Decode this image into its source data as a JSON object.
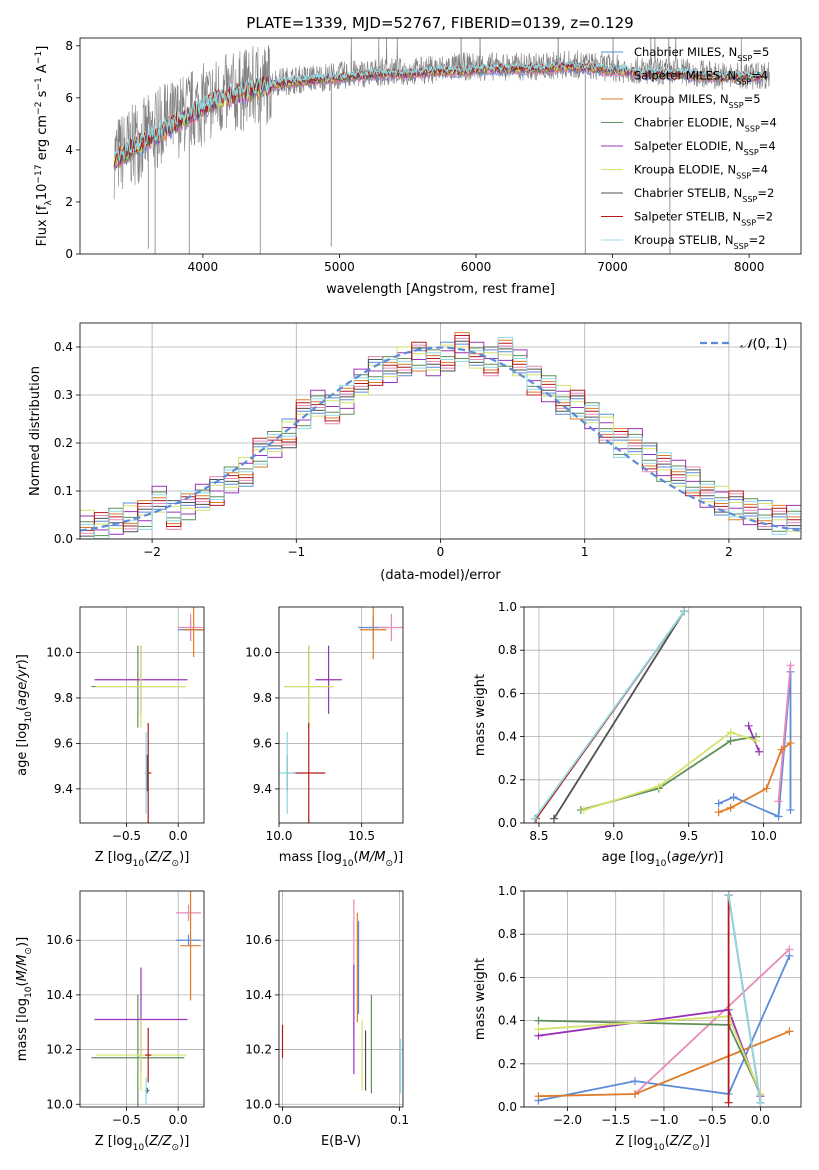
{
  "figure": {
    "title": "PLATE=1339, MJD=52767, FIBERID=0139, z=0.129"
  },
  "models": [
    {
      "name": "Chabrier MILES",
      "nssp": "5",
      "color": "#5b8bd9"
    },
    {
      "name": "Salpeter MILES",
      "nssp": "4",
      "color": "#e88aba"
    },
    {
      "name": "Kroupa MILES",
      "nssp": "5",
      "color": "#de7b28"
    },
    {
      "name": "Chabrier ELODIE",
      "nssp": "4",
      "color": "#5f8f5b"
    },
    {
      "name": "Salpeter ELODIE",
      "nssp": "4",
      "color": "#9a33b8"
    },
    {
      "name": "Kroupa ELODIE",
      "nssp": "4",
      "color": "#d6e26a"
    },
    {
      "name": "Chabrier STELIB",
      "nssp": "2",
      "color": "#505050"
    },
    {
      "name": "Salpeter STELIB",
      "nssp": "2",
      "color": "#b31b1b"
    },
    {
      "name": "Kroupa STELIB",
      "nssp": "2",
      "color": "#8fd9e3"
    }
  ],
  "chart_data": [
    {
      "id": "spectrum",
      "type": "line",
      "title": "PLATE=1339, MJD=52767, FIBERID=0139, z=0.129",
      "xlabel": "wavelength [Angstrom, rest frame]",
      "ylabel": "Flux [f_λ 10^-17 erg cm^-2 s^-1 A^-1]",
      "xlim": [
        3100,
        8380
      ],
      "ylim": [
        0,
        8.3
      ],
      "xticks": [
        4000,
        5000,
        6000,
        7000,
        8000
      ],
      "yticks": [
        0,
        2,
        4,
        6,
        8
      ],
      "data_x": [
        3350,
        3500,
        3700,
        3900,
        4100,
        4300,
        4500,
        4700,
        4900,
        5100,
        5300,
        5500,
        5700,
        5900,
        6100,
        6300,
        6500,
        6700,
        6900,
        7100,
        7300,
        7500,
        7700,
        7900,
        8150
      ],
      "data_y": [
        3.7,
        4.2,
        4.9,
        5.5,
        6.0,
        6.3,
        6.6,
        6.7,
        6.8,
        6.9,
        7.0,
        7.0,
        7.1,
        7.2,
        7.2,
        7.2,
        7.2,
        7.3,
        7.2,
        7.1,
        7.0,
        7.0,
        6.9,
        6.8,
        6.9
      ],
      "model_x": [
        3350,
        3500,
        3700,
        3900,
        4100,
        4300,
        4500,
        4700,
        4900,
        5100,
        5300,
        5500,
        5700,
        5900,
        6100,
        6300,
        6500,
        6700,
        6900,
        7100,
        7300,
        7500,
        7700,
        7900,
        8100
      ],
      "model_y": [
        3.6,
        4.1,
        4.7,
        5.3,
        5.9,
        6.2,
        6.5,
        6.6,
        6.7,
        6.8,
        6.9,
        6.9,
        7.0,
        7.0,
        7.1,
        7.1,
        7.1,
        7.2,
        7.1,
        7.0,
        6.9,
        6.9,
        6.8,
        6.8,
        6.8
      ],
      "legend_position": "upper right"
    },
    {
      "id": "residual-hist",
      "type": "line",
      "xlabel": "(data-model)/error",
      "ylabel": "Normed distribution",
      "xlim": [
        -2.5,
        2.5
      ],
      "ylim": [
        0,
        0.45
      ],
      "xticks": [
        -2,
        -1,
        0,
        1,
        2
      ],
      "yticks": [
        0.0,
        0.1,
        0.2,
        0.3,
        0.4
      ],
      "legend": "N(0,1)",
      "legend_position": "upper right",
      "bin_edges": [
        -2.5,
        -2.4,
        -2.3,
        -2.2,
        -2.1,
        -2.0,
        -1.9,
        -1.8,
        -1.7,
        -1.6,
        -1.5,
        -1.4,
        -1.3,
        -1.2,
        -1.1,
        -1.0,
        -0.9,
        -0.8,
        -0.7,
        -0.6,
        -0.5,
        -0.4,
        -0.3,
        -0.2,
        -0.1,
        0.0,
        0.1,
        0.2,
        0.3,
        0.4,
        0.5,
        0.6,
        0.7,
        0.8,
        0.9,
        1.0,
        1.1,
        1.2,
        1.3,
        1.4,
        1.5,
        1.6,
        1.7,
        1.8,
        1.9,
        2.0,
        2.1,
        2.2,
        2.3,
        2.4,
        2.5
      ],
      "hist_values": [
        0.03,
        0.025,
        0.04,
        0.045,
        0.05,
        0.08,
        0.05,
        0.07,
        0.09,
        0.1,
        0.12,
        0.14,
        0.18,
        0.2,
        0.22,
        0.26,
        0.28,
        0.27,
        0.29,
        0.33,
        0.35,
        0.35,
        0.37,
        0.38,
        0.37,
        0.38,
        0.4,
        0.38,
        0.37,
        0.39,
        0.37,
        0.33,
        0.31,
        0.29,
        0.28,
        0.26,
        0.23,
        0.2,
        0.2,
        0.17,
        0.15,
        0.14,
        0.12,
        0.09,
        0.08,
        0.07,
        0.06,
        0.05,
        0.04,
        0.04
      ],
      "gaussian_mean": 0,
      "gaussian_sigma": 1
    },
    {
      "id": "age-vs-Z",
      "type": "scatter",
      "xlabel": "Z [log10(Z/Z☉)]",
      "ylabel": "age  [log10(age/yr)]",
      "xlim": [
        -0.95,
        0.25
      ],
      "ylim": [
        9.25,
        10.2
      ],
      "xticks": [
        -0.5,
        0.0
      ],
      "yticks": [
        9.4,
        9.6,
        9.8,
        10.0
      ],
      "points": [
        {
          "model": 0,
          "x": 0.12,
          "y": 10.1,
          "xerr": 0.12,
          "yerr": 0.05
        },
        {
          "model": 1,
          "x": 0.12,
          "y": 10.11,
          "xerr": 0.12,
          "yerr": 0.06
        },
        {
          "model": 2,
          "x": 0.15,
          "y": 10.1,
          "xerr": 0.1,
          "yerr": 0.12
        },
        {
          "model": 3,
          "x": -0.39,
          "y": 9.85,
          "xerr": 0.45,
          "yerr": 0.18
        },
        {
          "model": 4,
          "x": -0.36,
          "y": 9.88,
          "xerr": 0.45,
          "yerr": 0.15
        },
        {
          "model": 5,
          "x": -0.36,
          "y": 9.85,
          "xerr": 0.44,
          "yerr": 0.18
        },
        {
          "model": 6,
          "x": -0.3,
          "y": 9.47,
          "xerr": 0.02,
          "yerr": 0.08
        },
        {
          "model": 7,
          "x": -0.29,
          "y": 9.47,
          "xerr": 0.03,
          "yerr": 0.22
        },
        {
          "model": 8,
          "x": -0.31,
          "y": 9.47,
          "xerr": 0.01,
          "yerr": 0.18
        }
      ]
    },
    {
      "id": "age-vs-mass",
      "type": "scatter",
      "xlabel": "mass [log10(M/M☉)]",
      "ylabel": "",
      "xlim": [
        10.0,
        10.75
      ],
      "ylim": [
        9.25,
        10.2
      ],
      "xticks": [
        10.0,
        10.5
      ],
      "yticks": [
        9.4,
        9.6,
        9.8,
        10.0
      ],
      "points": [
        {
          "model": 0,
          "x": 10.57,
          "y": 10.11,
          "xerr": 0.09,
          "yerr": 0.05
        },
        {
          "model": 1,
          "x": 10.68,
          "y": 10.11,
          "xerr": 0.08,
          "yerr": 0.06
        },
        {
          "model": 2,
          "x": 10.57,
          "y": 10.1,
          "xerr": 0.08,
          "yerr": 0.13
        },
        {
          "model": 3,
          "x": 10.18,
          "y": 9.85,
          "xerr": 0.15,
          "yerr": 0.18
        },
        {
          "model": 4,
          "x": 10.3,
          "y": 9.88,
          "xerr": 0.08,
          "yerr": 0.15
        },
        {
          "model": 5,
          "x": 10.18,
          "y": 9.85,
          "xerr": 0.15,
          "yerr": 0.18
        },
        {
          "model": 6,
          "x": 10.05,
          "y": 9.47,
          "xerr": 0.01,
          "yerr": 0.08
        },
        {
          "model": 7,
          "x": 10.18,
          "y": 9.47,
          "xerr": 0.1,
          "yerr": 0.22
        },
        {
          "model": 8,
          "x": 10.05,
          "y": 9.47,
          "xerr": 0.05,
          "yerr": 0.18
        }
      ]
    },
    {
      "id": "weight-vs-age",
      "type": "line",
      "xlabel": "age  [log10(age/yr)]",
      "ylabel": "mass weight",
      "xlim": [
        8.4,
        10.25
      ],
      "ylim": [
        0.0,
        1.0
      ],
      "xticks": [
        8.5,
        9.0,
        9.5,
        10.0
      ],
      "yticks": [
        0.0,
        0.2,
        0.4,
        0.6,
        0.8,
        1.0
      ],
      "series": [
        {
          "model": 0,
          "x": [
            9.7,
            9.8,
            10.1,
            10.18,
            10.18
          ],
          "y": [
            0.09,
            0.12,
            0.03,
            0.7,
            0.06
          ]
        },
        {
          "model": 1,
          "x": [
            10.1,
            10.18
          ],
          "y": [
            0.1,
            0.73
          ]
        },
        {
          "model": 2,
          "x": [
            9.7,
            9.78,
            10.02,
            10.12,
            10.18
          ],
          "y": [
            0.05,
            0.07,
            0.16,
            0.34,
            0.37
          ]
        },
        {
          "model": 3,
          "x": [
            8.78,
            9.3,
            9.78,
            9.95
          ],
          "y": [
            0.06,
            0.16,
            0.38,
            0.4
          ]
        },
        {
          "model": 4,
          "x": [
            9.9,
            9.97
          ],
          "y": [
            0.45,
            0.33
          ]
        },
        {
          "model": 5,
          "x": [
            8.8,
            9.3,
            9.78,
            9.95
          ],
          "y": [
            0.06,
            0.17,
            0.42,
            0.38
          ]
        },
        {
          "model": 6,
          "x": [
            8.6,
            9.47
          ],
          "y": [
            0.02,
            0.98
          ]
        },
        {
          "model": 7,
          "x": [
            8.48,
            9.47
          ],
          "y": [
            0.02,
            0.98
          ]
        },
        {
          "model": 8,
          "x": [
            8.47,
            9.47
          ],
          "y": [
            0.02,
            0.98
          ]
        }
      ]
    },
    {
      "id": "mass-vs-Z",
      "type": "scatter",
      "xlabel": "Z [log10(Z/Z☉)]",
      "ylabel": "mass [log10(M/M☉)]",
      "xlim": [
        -0.95,
        0.25
      ],
      "ylim": [
        9.99,
        10.78
      ],
      "xticks": [
        -0.5,
        0.0
      ],
      "yticks": [
        10.0,
        10.2,
        10.4,
        10.6
      ],
      "points": [
        {
          "model": 0,
          "x": 0.1,
          "y": 10.6,
          "xerr": 0.12,
          "yerr": 0.02
        },
        {
          "model": 1,
          "x": 0.1,
          "y": 10.7,
          "xerr": 0.12,
          "yerr": 0.03
        },
        {
          "model": 2,
          "x": 0.12,
          "y": 10.58,
          "xerr": 0.1,
          "yerr": 0.2
        },
        {
          "model": 3,
          "x": -0.39,
          "y": 10.17,
          "xerr": 0.45,
          "yerr": 0.23
        },
        {
          "model": 4,
          "x": -0.36,
          "y": 10.31,
          "xerr": 0.45,
          "yerr": 0.19
        },
        {
          "model": 5,
          "x": -0.36,
          "y": 10.18,
          "xerr": 0.44,
          "yerr": 0.13
        },
        {
          "model": 6,
          "x": -0.3,
          "y": 10.05,
          "xerr": 0.02,
          "yerr": 0.01
        },
        {
          "model": 7,
          "x": -0.29,
          "y": 10.18,
          "xerr": 0.03,
          "yerr": 0.1
        },
        {
          "model": 8,
          "x": -0.31,
          "y": 10.05,
          "xerr": 0.01,
          "yerr": 0.05
        }
      ]
    },
    {
      "id": "mass-vs-EBV",
      "type": "scatter",
      "xlabel": "E(B-V)",
      "ylabel": "",
      "xlim": [
        -0.003,
        0.103
      ],
      "ylim": [
        9.99,
        10.78
      ],
      "xticks": [
        0.0,
        0.1
      ],
      "yticks": [
        10.0,
        10.2,
        10.4,
        10.6
      ],
      "points": [
        {
          "model": 0,
          "x": 0.065,
          "y": 10.5,
          "xerr": 0,
          "yerr": 0.17
        },
        {
          "model": 1,
          "x": 0.061,
          "y": 10.5,
          "xerr": 0,
          "yerr": 0.25
        },
        {
          "model": 2,
          "x": 0.064,
          "y": 10.5,
          "xerr": 0,
          "yerr": 0.2
        },
        {
          "model": 3,
          "x": 0.076,
          "y": 10.22,
          "xerr": 0,
          "yerr": 0.18
        },
        {
          "model": 4,
          "x": 0.061,
          "y": 10.31,
          "xerr": 0,
          "yerr": 0.2
        },
        {
          "model": 5,
          "x": 0.068,
          "y": 10.18,
          "xerr": 0,
          "yerr": 0.13
        },
        {
          "model": 6,
          "x": 0.071,
          "y": 10.16,
          "xerr": 0,
          "yerr": 0.11
        },
        {
          "model": 7,
          "x": 0.0,
          "y": 10.23,
          "xerr": 0,
          "yerr": 0.06
        },
        {
          "model": 8,
          "x": 0.101,
          "y": 10.14,
          "xerr": 0,
          "yerr": 0.1
        }
      ]
    },
    {
      "id": "weight-vs-Z",
      "type": "line",
      "xlabel": "Z [log10(Z/Z☉)]",
      "ylabel": "mass weight",
      "xlim": [
        -2.45,
        0.42
      ],
      "ylim": [
        0.0,
        1.0
      ],
      "xticks": [
        -2.0,
        -1.5,
        -1.0,
        -0.5,
        0.0
      ],
      "yticks": [
        0.0,
        0.2,
        0.4,
        0.6,
        0.8,
        1.0
      ],
      "series": [
        {
          "model": 0,
          "x": [
            -2.3,
            -1.3,
            -0.33,
            0.3
          ],
          "y": [
            0.03,
            0.12,
            0.06,
            0.7
          ]
        },
        {
          "model": 1,
          "x": [
            -1.3,
            0.3
          ],
          "y": [
            0.06,
            0.73
          ]
        },
        {
          "model": 2,
          "x": [
            -2.3,
            -1.3,
            0.3
          ],
          "y": [
            0.05,
            0.06,
            0.35
          ]
        },
        {
          "model": 3,
          "x": [
            -2.3,
            -0.33,
            0.0
          ],
          "y": [
            0.4,
            0.38,
            0.06
          ]
        },
        {
          "model": 4,
          "x": [
            -2.3,
            -0.33,
            0.0
          ],
          "y": [
            0.33,
            0.45,
            0.05
          ]
        },
        {
          "model": 5,
          "x": [
            -2.3,
            -0.33,
            0.0
          ],
          "y": [
            0.36,
            0.42,
            0.06
          ]
        },
        {
          "model": 6,
          "x": [
            -0.33,
            0.0
          ],
          "y": [
            0.98,
            0.02
          ]
        },
        {
          "model": 7,
          "x": [
            -0.33,
            -0.33
          ],
          "y": [
            0.02,
            0.98
          ]
        },
        {
          "model": 8,
          "x": [
            -0.33,
            0.0
          ],
          "y": [
            0.98,
            0.02
          ]
        }
      ]
    }
  ]
}
